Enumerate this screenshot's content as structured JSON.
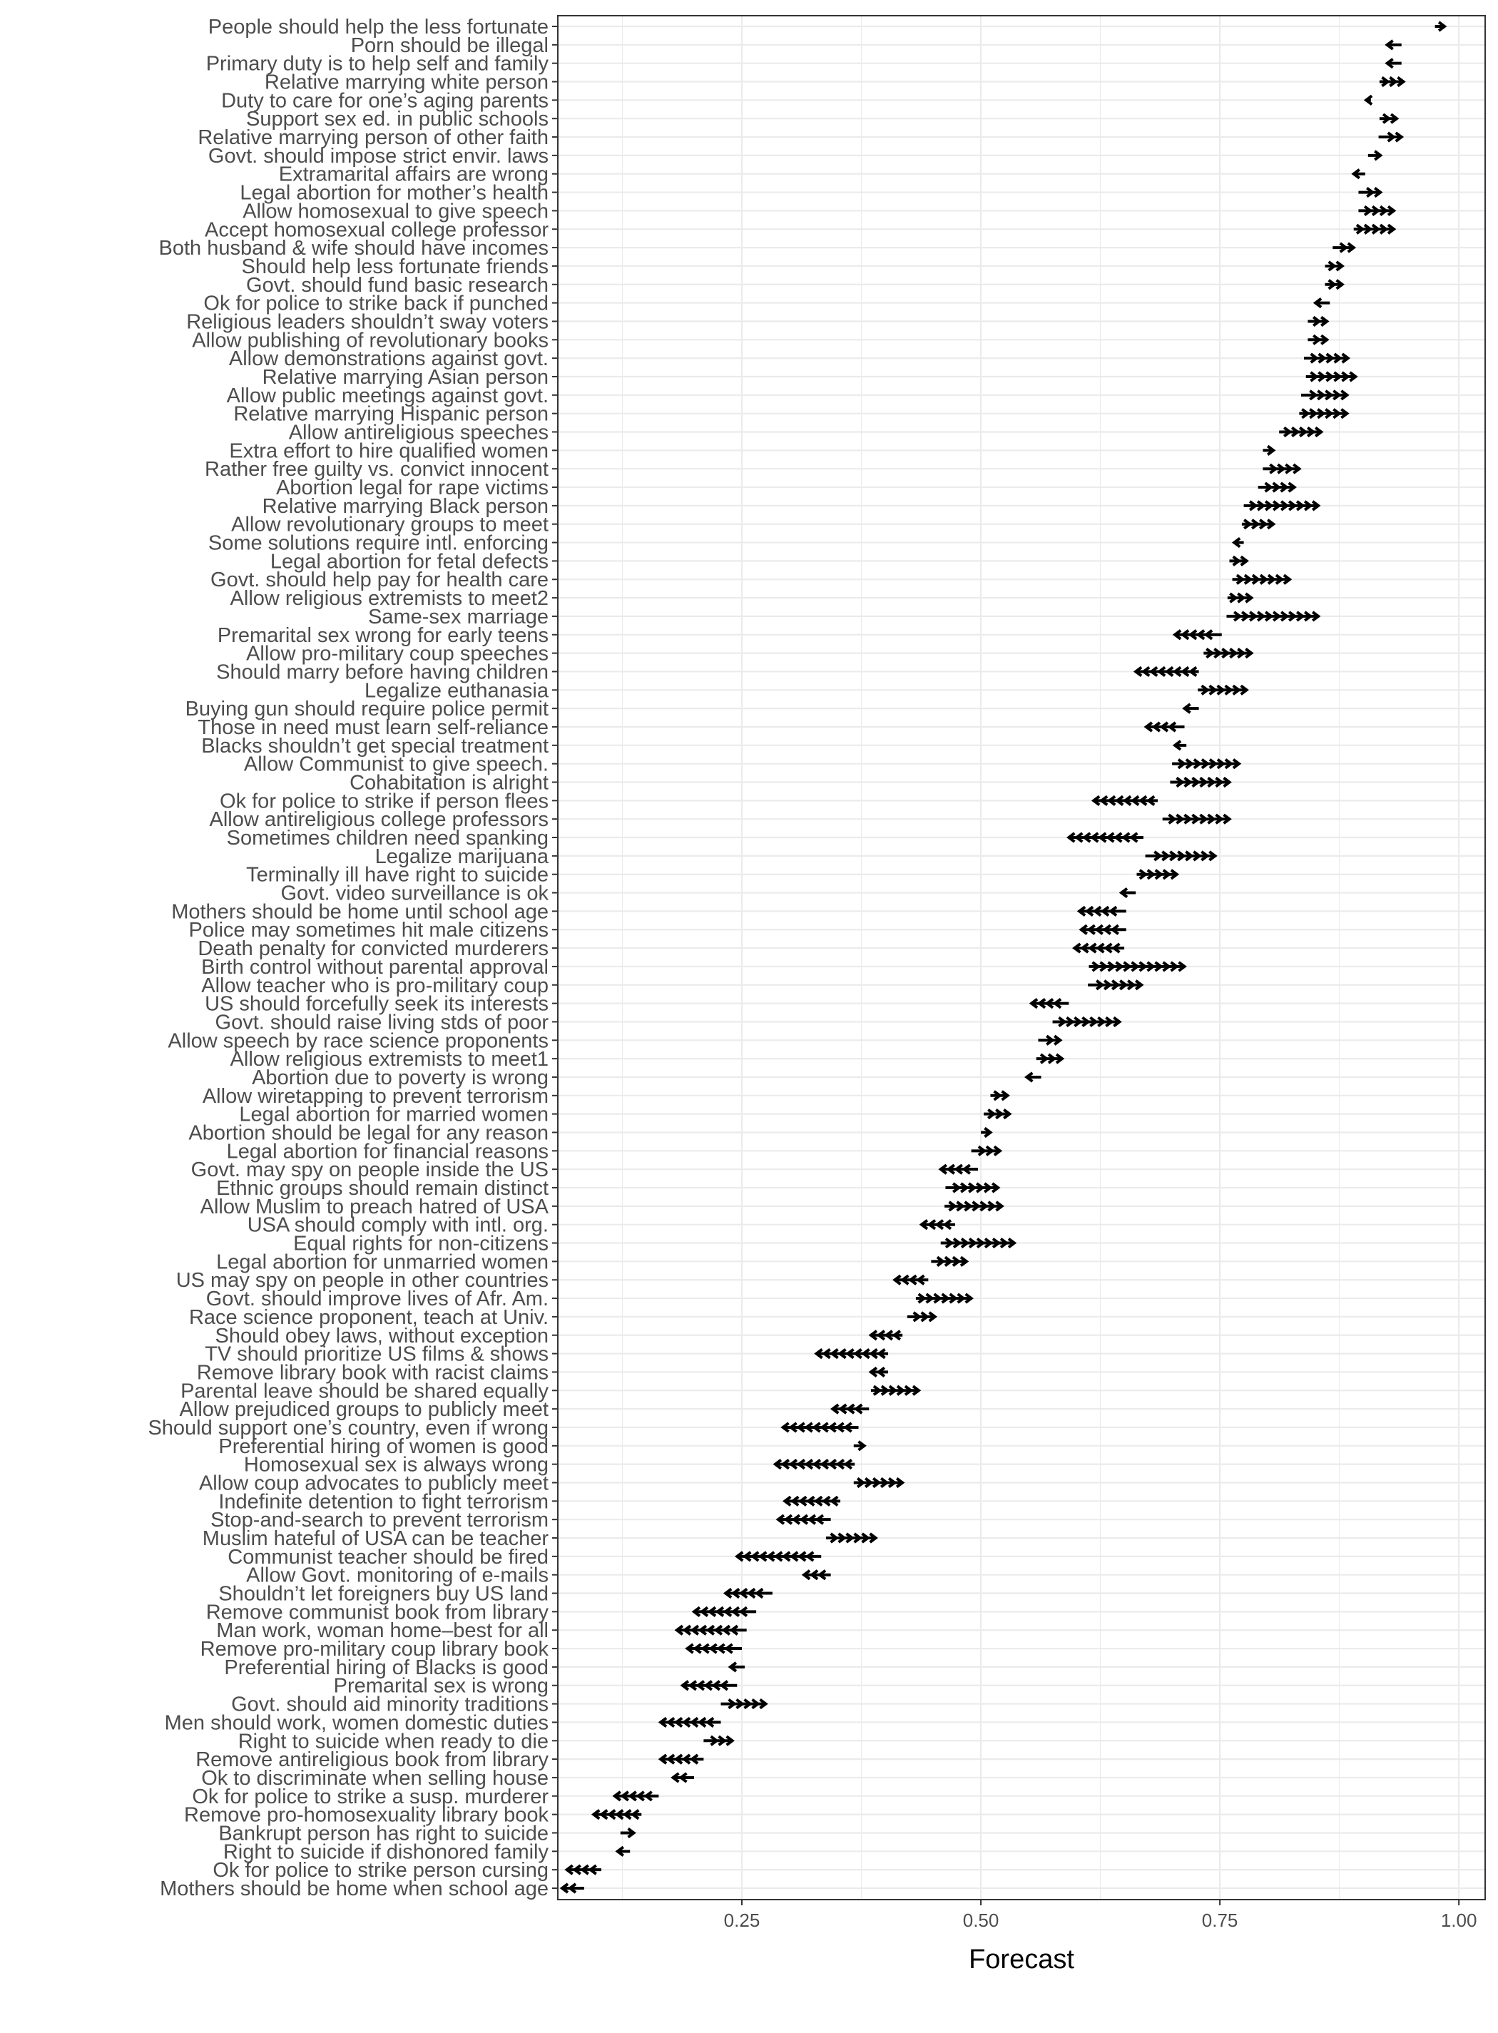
{
  "chart_data": {
    "type": "dot-arrow",
    "xlabel": "Forecast",
    "xlim": [
      0.0575,
      1.0275
    ],
    "x_ticks": [
      {
        "value": 0.25,
        "label": "0.25"
      },
      {
        "value": 0.5,
        "label": "0.50"
      },
      {
        "value": 0.75,
        "label": "0.75"
      },
      {
        "value": 1.0,
        "label": "1.00"
      }
    ],
    "grid": true,
    "arrow_color": "#000000",
    "rows": [
      {
        "label": "People should help the less fortunate",
        "start": 0.975,
        "end": 0.985
      },
      {
        "label": "Porn should be illegal",
        "start": 0.94,
        "end": 0.925
      },
      {
        "label": "Primary duty is to help self and family",
        "start": 0.94,
        "end": 0.925
      },
      {
        "label": "Relative marrying white person",
        "start": 0.917,
        "end": 0.942
      },
      {
        "label": "Duty to care for one’s aging parents",
        "start": 0.908,
        "end": 0.903
      },
      {
        "label": "Support sex ed. in public schools",
        "start": 0.917,
        "end": 0.935
      },
      {
        "label": "Relative marrying person of other faith",
        "start": 0.916,
        "end": 0.94
      },
      {
        "label": "Govt. should impose strict envir. laws",
        "start": 0.905,
        "end": 0.918
      },
      {
        "label": "Extramarital affairs are wrong",
        "start": 0.902,
        "end": 0.89
      },
      {
        "label": "Legal abortion for mother’s health",
        "start": 0.895,
        "end": 0.918
      },
      {
        "label": "Allow homosexual to give speech",
        "start": 0.895,
        "end": 0.932
      },
      {
        "label": "Accept homosexual college professor",
        "start": 0.89,
        "end": 0.932
      },
      {
        "label": "Both husband & wife should have incomes",
        "start": 0.868,
        "end": 0.89
      },
      {
        "label": "Should help less fortunate friends",
        "start": 0.86,
        "end": 0.878
      },
      {
        "label": "Govt. should fund basic research",
        "start": 0.86,
        "end": 0.878
      },
      {
        "label": "Ok for police to strike back if punched",
        "start": 0.865,
        "end": 0.85
      },
      {
        "label": "Religious leaders shouldn’t sway voters",
        "start": 0.842,
        "end": 0.862
      },
      {
        "label": "Allow publishing of revolutionary books",
        "start": 0.842,
        "end": 0.862
      },
      {
        "label": "Allow demonstrations against govt.",
        "start": 0.838,
        "end": 0.884
      },
      {
        "label": "Relative marrying Asian person",
        "start": 0.84,
        "end": 0.892
      },
      {
        "label": "Allow public meetings against govt.",
        "start": 0.835,
        "end": 0.883
      },
      {
        "label": "Relative marrying Hispanic person",
        "start": 0.833,
        "end": 0.883
      },
      {
        "label": "Allow antireligious speeches",
        "start": 0.812,
        "end": 0.856
      },
      {
        "label": "Extra effort to hire qualified women",
        "start": 0.795,
        "end": 0.806
      },
      {
        "label": "Rather free guilty vs. convict innocent",
        "start": 0.795,
        "end": 0.833
      },
      {
        "label": "Abortion legal for rape victims",
        "start": 0.79,
        "end": 0.828
      },
      {
        "label": "Relative marrying Black person",
        "start": 0.775,
        "end": 0.853
      },
      {
        "label": "Allow revolutionary groups to meet",
        "start": 0.773,
        "end": 0.806
      },
      {
        "label": "Some solutions require intl. enforcing",
        "start": 0.775,
        "end": 0.765
      },
      {
        "label": "Legal abortion for fetal defects",
        "start": 0.76,
        "end": 0.778
      },
      {
        "label": "Govt. should help pay for health care",
        "start": 0.763,
        "end": 0.823
      },
      {
        "label": "Allow religious extremists to meet2",
        "start": 0.758,
        "end": 0.783
      },
      {
        "label": "Same-sex marriage",
        "start": 0.757,
        "end": 0.853
      },
      {
        "label": "Premarital sex wrong for early teens",
        "start": 0.752,
        "end": 0.703
      },
      {
        "label": "Allow pro-military coup speeches",
        "start": 0.733,
        "end": 0.783
      },
      {
        "label": "Should marry before having children",
        "start": 0.728,
        "end": 0.662
      },
      {
        "label": "Legalize euthanasia",
        "start": 0.727,
        "end": 0.778
      },
      {
        "label": "Buying gun should require police permit",
        "start": 0.728,
        "end": 0.713
      },
      {
        "label": "Those in need must learn self-reliance",
        "start": 0.713,
        "end": 0.673
      },
      {
        "label": "Blacks shouldn’t get special treatment",
        "start": 0.715,
        "end": 0.703
      },
      {
        "label": "Allow Communist to give speech.",
        "start": 0.7,
        "end": 0.77
      },
      {
        "label": "Cohabitation is alright",
        "start": 0.698,
        "end": 0.76
      },
      {
        "label": "Ok for police to strike if person flees",
        "start": 0.685,
        "end": 0.618
      },
      {
        "label": "Allow antireligious college professors",
        "start": 0.69,
        "end": 0.76
      },
      {
        "label": "Sometimes children need spanking",
        "start": 0.67,
        "end": 0.592
      },
      {
        "label": "Legalize marijuana",
        "start": 0.672,
        "end": 0.745
      },
      {
        "label": "Terminally ill have right to suicide",
        "start": 0.663,
        "end": 0.705
      },
      {
        "label": "Govt. video surveillance is ok",
        "start": 0.662,
        "end": 0.647
      },
      {
        "label": "Mothers should be home until school age",
        "start": 0.652,
        "end": 0.603
      },
      {
        "label": "Police may sometimes hit male citizens",
        "start": 0.652,
        "end": 0.605
      },
      {
        "label": "Death penalty for convicted murderers",
        "start": 0.65,
        "end": 0.598
      },
      {
        "label": "Birth control without parental approval",
        "start": 0.613,
        "end": 0.713
      },
      {
        "label": "Allow teacher who is pro-military coup",
        "start": 0.612,
        "end": 0.668
      },
      {
        "label": "US should forcefully seek its interests",
        "start": 0.592,
        "end": 0.553
      },
      {
        "label": "Govt. should raise living stds of poor",
        "start": 0.575,
        "end": 0.645
      },
      {
        "label": "Allow speech by race science proponents",
        "start": 0.56,
        "end": 0.583
      },
      {
        "label": "Allow religious extremists to meet1",
        "start": 0.558,
        "end": 0.585
      },
      {
        "label": "Abortion due to poverty is wrong",
        "start": 0.563,
        "end": 0.548
      },
      {
        "label": "Allow wiretapping to prevent terrorism",
        "start": 0.51,
        "end": 0.528
      },
      {
        "label": "Legal abortion for married women",
        "start": 0.503,
        "end": 0.53
      },
      {
        "label": "Abortion should be legal for any reason",
        "start": 0.5,
        "end": 0.51
      },
      {
        "label": "Legal abortion for financial reasons",
        "start": 0.49,
        "end": 0.52
      },
      {
        "label": "Govt. may spy on people inside the US",
        "start": 0.497,
        "end": 0.458
      },
      {
        "label": "Ethnic groups should remain distinct",
        "start": 0.463,
        "end": 0.518
      },
      {
        "label": "Allow Muslim to preach hatred of USA",
        "start": 0.462,
        "end": 0.522
      },
      {
        "label": "USA should comply with intl. org.",
        "start": 0.473,
        "end": 0.438
      },
      {
        "label": "Equal rights for non-citizens",
        "start": 0.458,
        "end": 0.535
      },
      {
        "label": "Legal abortion for unmarried women",
        "start": 0.448,
        "end": 0.485
      },
      {
        "label": "US may spy on people in other countries",
        "start": 0.445,
        "end": 0.41
      },
      {
        "label": "Govt. should improve lives of Afr. Am.",
        "start": 0.432,
        "end": 0.49
      },
      {
        "label": "Race science proponent, teach at Univ.",
        "start": 0.423,
        "end": 0.452
      },
      {
        "label": "Should obey laws, without exception",
        "start": 0.418,
        "end": 0.385
      },
      {
        "label": "TV should prioritize US films & shows",
        "start": 0.403,
        "end": 0.328
      },
      {
        "label": "Remove library book with racist claims",
        "start": 0.403,
        "end": 0.385
      },
      {
        "label": "Parental leave should be shared equally",
        "start": 0.385,
        "end": 0.435
      },
      {
        "label": "Allow prejudiced groups to publicly meet",
        "start": 0.383,
        "end": 0.345
      },
      {
        "label": "Should support one’s country, even if wrong",
        "start": 0.372,
        "end": 0.293
      },
      {
        "label": "Preferential hiring of women is good",
        "start": 0.367,
        "end": 0.378
      },
      {
        "label": "Homosexual sex is always wrong",
        "start": 0.368,
        "end": 0.285
      },
      {
        "label": "Allow coup advocates to publicly meet",
        "start": 0.367,
        "end": 0.418
      },
      {
        "label": "Indefinite detention to fight terrorism",
        "start": 0.353,
        "end": 0.295
      },
      {
        "label": "Stop-and-search to prevent terrorism",
        "start": 0.343,
        "end": 0.288
      },
      {
        "label": "Muslim hateful of USA can be teacher",
        "start": 0.338,
        "end": 0.39
      },
      {
        "label": "Communist teacher should be fired",
        "start": 0.333,
        "end": 0.245
      },
      {
        "label": "Allow Govt. monitoring of e-mails",
        "start": 0.343,
        "end": 0.315
      },
      {
        "label": "Shouldn’t let foreigners buy US land",
        "start": 0.282,
        "end": 0.233
      },
      {
        "label": "Remove communist book from library",
        "start": 0.265,
        "end": 0.2
      },
      {
        "label": "Man work, woman home–best for all",
        "start": 0.255,
        "end": 0.182
      },
      {
        "label": "Remove pro-military coup library book",
        "start": 0.25,
        "end": 0.193
      },
      {
        "label": "Preferential hiring of Blacks is good",
        "start": 0.253,
        "end": 0.238
      },
      {
        "label": "Premarital sex is wrong",
        "start": 0.245,
        "end": 0.188
      },
      {
        "label": "Govt. should aid minority traditions",
        "start": 0.228,
        "end": 0.275
      },
      {
        "label": "Men should work, women domestic duties",
        "start": 0.228,
        "end": 0.165
      },
      {
        "label": "Right to suicide when ready to die",
        "start": 0.21,
        "end": 0.24
      },
      {
        "label": "Remove antireligious book from library",
        "start": 0.21,
        "end": 0.165
      },
      {
        "label": "Ok to discriminate when selling house",
        "start": 0.2,
        "end": 0.178
      },
      {
        "label": "Ok for police to strike a susp. murderer",
        "start": 0.163,
        "end": 0.117
      },
      {
        "label": "Remove pro-homosexuality library book",
        "start": 0.145,
        "end": 0.095
      },
      {
        "label": "Bankrupt person has right to suicide",
        "start": 0.123,
        "end": 0.137
      },
      {
        "label": "Right to suicide if dishonored family",
        "start": 0.133,
        "end": 0.12
      },
      {
        "label": "Ok for police to strike person cursing",
        "start": 0.103,
        "end": 0.067
      },
      {
        "label": "Mothers should be home when school age",
        "start": 0.085,
        "end": 0.062
      }
    ]
  }
}
